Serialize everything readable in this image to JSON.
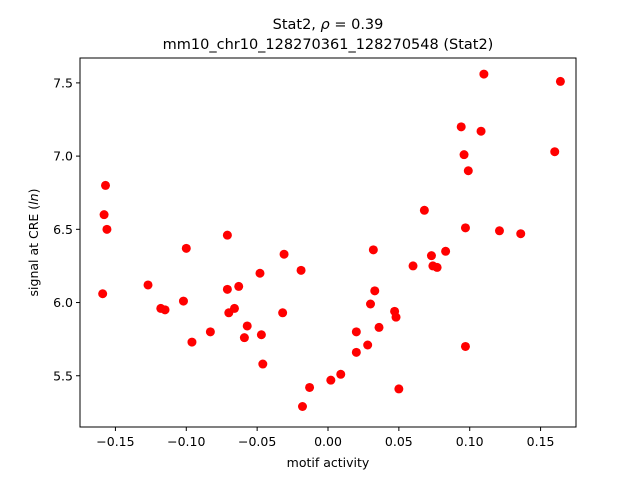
{
  "chart_data": {
    "type": "scatter",
    "title_line1_prefix": "Stat2, ",
    "title_line1_symbol": "ρ",
    "title_line1_suffix": " = 0.39",
    "title_line2": "mm10_chr10_128270361_128270548 (Stat2)",
    "xlabel": "motif activity",
    "ylabel_prefix": "signal at CRE (",
    "ylabel_italic": "ln",
    "ylabel_suffix": ")",
    "xlim": [
      -0.175,
      0.175
    ],
    "ylim": [
      5.15,
      7.67
    ],
    "x_ticks": [
      -0.15,
      -0.1,
      -0.05,
      0.0,
      0.05,
      0.1,
      0.15
    ],
    "x_tick_labels": [
      "−0.15",
      "−0.10",
      "−0.05",
      "0.00",
      "0.05",
      "0.10",
      "0.15"
    ],
    "y_ticks": [
      5.5,
      6.0,
      6.5,
      7.0,
      7.5
    ],
    "y_tick_labels": [
      "5.5",
      "6.0",
      "6.5",
      "7.0",
      "7.5"
    ],
    "marker_color": "#ff0000",
    "grid": false,
    "points": [
      {
        "x": -0.159,
        "y": 6.06
      },
      {
        "x": -0.158,
        "y": 6.6
      },
      {
        "x": -0.157,
        "y": 6.8
      },
      {
        "x": -0.156,
        "y": 6.5
      },
      {
        "x": -0.127,
        "y": 6.12
      },
      {
        "x": -0.118,
        "y": 5.96
      },
      {
        "x": -0.115,
        "y": 5.95
      },
      {
        "x": -0.102,
        "y": 6.01
      },
      {
        "x": -0.1,
        "y": 6.37
      },
      {
        "x": -0.096,
        "y": 5.73
      },
      {
        "x": -0.083,
        "y": 5.8
      },
      {
        "x": -0.071,
        "y": 6.46
      },
      {
        "x": -0.071,
        "y": 6.09
      },
      {
        "x": -0.07,
        "y": 5.93
      },
      {
        "x": -0.066,
        "y": 5.96
      },
      {
        "x": -0.063,
        "y": 6.11
      },
      {
        "x": -0.059,
        "y": 5.76
      },
      {
        "x": -0.057,
        "y": 5.84
      },
      {
        "x": -0.048,
        "y": 6.2
      },
      {
        "x": -0.047,
        "y": 5.78
      },
      {
        "x": -0.046,
        "y": 5.58
      },
      {
        "x": -0.032,
        "y": 5.93
      },
      {
        "x": -0.031,
        "y": 6.33
      },
      {
        "x": -0.019,
        "y": 6.22
      },
      {
        "x": -0.018,
        "y": 5.29
      },
      {
        "x": -0.013,
        "y": 5.42
      },
      {
        "x": 0.002,
        "y": 5.47
      },
      {
        "x": 0.009,
        "y": 5.51
      },
      {
        "x": 0.02,
        "y": 5.8
      },
      {
        "x": 0.02,
        "y": 5.66
      },
      {
        "x": 0.028,
        "y": 5.71
      },
      {
        "x": 0.03,
        "y": 5.99
      },
      {
        "x": 0.032,
        "y": 6.36
      },
      {
        "x": 0.033,
        "y": 6.08
      },
      {
        "x": 0.036,
        "y": 5.83
      },
      {
        "x": 0.047,
        "y": 5.94
      },
      {
        "x": 0.048,
        "y": 5.9
      },
      {
        "x": 0.05,
        "y": 5.41
      },
      {
        "x": 0.06,
        "y": 6.25
      },
      {
        "x": 0.068,
        "y": 6.63
      },
      {
        "x": 0.073,
        "y": 6.32
      },
      {
        "x": 0.074,
        "y": 6.25
      },
      {
        "x": 0.077,
        "y": 6.24
      },
      {
        "x": 0.083,
        "y": 6.35
      },
      {
        "x": 0.094,
        "y": 7.2
      },
      {
        "x": 0.096,
        "y": 7.01
      },
      {
        "x": 0.097,
        "y": 6.51
      },
      {
        "x": 0.097,
        "y": 5.7
      },
      {
        "x": 0.099,
        "y": 6.9
      },
      {
        "x": 0.108,
        "y": 7.17
      },
      {
        "x": 0.11,
        "y": 7.56
      },
      {
        "x": 0.121,
        "y": 6.49
      },
      {
        "x": 0.136,
        "y": 6.47
      },
      {
        "x": 0.16,
        "y": 7.03
      },
      {
        "x": 0.164,
        "y": 7.51
      }
    ]
  }
}
